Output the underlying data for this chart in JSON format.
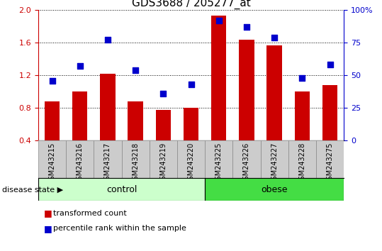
{
  "title": "GDS3688 / 205277_at",
  "samples": [
    "GSM243215",
    "GSM243216",
    "GSM243217",
    "GSM243218",
    "GSM243219",
    "GSM243220",
    "GSM243225",
    "GSM243226",
    "GSM243227",
    "GSM243228",
    "GSM243275"
  ],
  "transformed_count": [
    0.88,
    1.0,
    1.22,
    0.88,
    0.78,
    0.8,
    1.93,
    1.64,
    1.57,
    1.0,
    1.08
  ],
  "percentile_rank": [
    46,
    57,
    77,
    54,
    36,
    43,
    92,
    87,
    79,
    48,
    58
  ],
  "groups": [
    {
      "label": "control",
      "indices": [
        0,
        1,
        2,
        3,
        4,
        5
      ],
      "color": "#ccffcc"
    },
    {
      "label": "obese",
      "indices": [
        6,
        7,
        8,
        9,
        10
      ],
      "color": "#44dd44"
    }
  ],
  "ylim_left": [
    0.4,
    2.0
  ],
  "ylim_right": [
    0.0,
    100.0
  ],
  "yticks_left": [
    0.4,
    0.8,
    1.2,
    1.6,
    2.0
  ],
  "yticks_right": [
    0,
    25,
    50,
    75,
    100
  ],
  "bar_color": "#cc0000",
  "dot_color": "#0000cc",
  "bar_width": 0.55,
  "dot_size": 40,
  "tick_fontsize": 8,
  "label_fontsize": 8,
  "group_fontsize": 9,
  "title_fontsize": 11,
  "sample_fontsize": 7,
  "axis_bg": "#cccccc",
  "legend_bar_label": "transformed count",
  "legend_dot_label": "percentile rank within the sample",
  "disease_state_label": "disease state",
  "left_color": "#cc0000",
  "right_color": "#0000cc"
}
